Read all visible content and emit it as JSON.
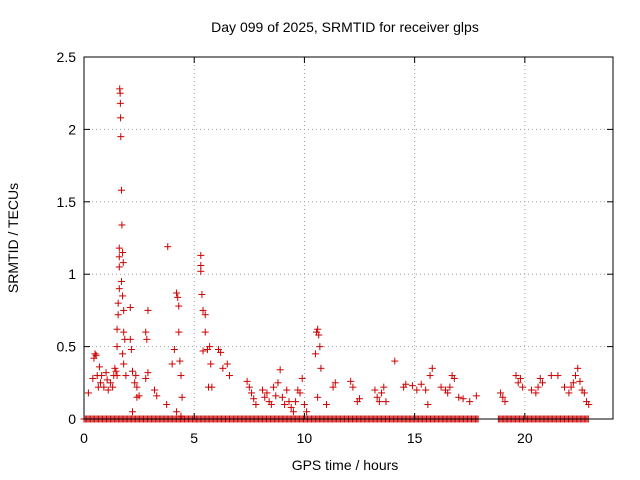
{
  "chart_data": {
    "type": "scatter",
    "title": "Day 099 of 2025, SRMTID for receiver glps",
    "xlabel": "GPS time / hours",
    "ylabel": "SRMTID / TECUs",
    "xlim": [
      0,
      24
    ],
    "ylim": [
      0,
      2.5
    ],
    "xticks": [
      0,
      5,
      10,
      15,
      20
    ],
    "yticks": [
      0,
      0.5,
      1,
      1.5,
      2,
      2.5
    ],
    "xtick_labels": [
      "0",
      "5",
      "10",
      "15",
      "20"
    ],
    "ytick_labels": [
      "0",
      "0.5",
      "1",
      "1.5",
      "2",
      "2.5"
    ],
    "grid": true,
    "marker": "+",
    "series": [
      {
        "name": "SRMTID",
        "color": "#cc0000",
        "points": [
          [
            0.2,
            0.18
          ],
          [
            0.4,
            0.28
          ],
          [
            0.45,
            0.42
          ],
          [
            0.5,
            0.45
          ],
          [
            0.55,
            0.44
          ],
          [
            0.6,
            0.3
          ],
          [
            0.65,
            0.22
          ],
          [
            0.7,
            0.36
          ],
          [
            0.75,
            0.25
          ],
          [
            0.8,
            0.3
          ],
          [
            0.9,
            0.22
          ],
          [
            1.0,
            0.32
          ],
          [
            1.05,
            0.27
          ],
          [
            1.1,
            0.2
          ],
          [
            1.2,
            0.25
          ],
          [
            1.3,
            0.22
          ],
          [
            1.35,
            0.3
          ],
          [
            1.4,
            0.35
          ],
          [
            1.45,
            0.33
          ],
          [
            1.5,
            0.3
          ],
          [
            1.5,
            0.5
          ],
          [
            1.5,
            0.62
          ],
          [
            1.55,
            0.72
          ],
          [
            1.55,
            0.8
          ],
          [
            1.6,
            0.9
          ],
          [
            1.6,
            1.05
          ],
          [
            1.6,
            1.12
          ],
          [
            1.6,
            1.18
          ],
          [
            1.62,
            2.28
          ],
          [
            1.64,
            2.25
          ],
          [
            1.65,
            2.18
          ],
          [
            1.66,
            2.08
          ],
          [
            1.67,
            1.95
          ],
          [
            1.7,
            1.58
          ],
          [
            1.72,
            1.34
          ],
          [
            1.75,
            1.15
          ],
          [
            1.78,
            1.08
          ],
          [
            1.7,
            0.95
          ],
          [
            1.75,
            0.85
          ],
          [
            1.8,
            0.75
          ],
          [
            1.8,
            0.6
          ],
          [
            1.85,
            0.55
          ],
          [
            1.75,
            0.45
          ],
          [
            1.8,
            0.38
          ],
          [
            1.9,
            0.3
          ],
          [
            2.1,
            0.77
          ],
          [
            2.1,
            0.55
          ],
          [
            2.15,
            0.48
          ],
          [
            2.2,
            0.33
          ],
          [
            2.2,
            0.05
          ],
          [
            2.3,
            0.25
          ],
          [
            2.35,
            0.3
          ],
          [
            2.4,
            0.15
          ],
          [
            2.4,
            0.22
          ],
          [
            2.5,
            0.16
          ],
          [
            2.8,
            0.28
          ],
          [
            2.8,
            0.6
          ],
          [
            2.85,
            0.55
          ],
          [
            2.9,
            0.75
          ],
          [
            2.9,
            0.32
          ],
          [
            3.2,
            0.2
          ],
          [
            3.3,
            0.16
          ],
          [
            3.8,
            1.19
          ],
          [
            3.75,
            0.1
          ],
          [
            4.0,
            0.38
          ],
          [
            4.1,
            0.48
          ],
          [
            4.2,
            0.87
          ],
          [
            4.25,
            0.84
          ],
          [
            4.3,
            0.78
          ],
          [
            4.3,
            0.6
          ],
          [
            4.35,
            0.4
          ],
          [
            4.4,
            0.3
          ],
          [
            4.45,
            0.15
          ],
          [
            4.2,
            0.05
          ],
          [
            4.4,
            0.02
          ],
          [
            5.3,
            1.13
          ],
          [
            5.3,
            1.06
          ],
          [
            5.3,
            1.02
          ],
          [
            5.35,
            0.86
          ],
          [
            5.4,
            0.75
          ],
          [
            5.5,
            0.72
          ],
          [
            5.5,
            0.6
          ],
          [
            5.6,
            0.48
          ],
          [
            5.7,
            0.5
          ],
          [
            5.75,
            0.38
          ],
          [
            5.8,
            0.22
          ],
          [
            5.65,
            0.22
          ],
          [
            5.4,
            0.47
          ],
          [
            6.1,
            0.48
          ],
          [
            6.2,
            0.46
          ],
          [
            6.3,
            0.35
          ],
          [
            6.5,
            0.38
          ],
          [
            6.6,
            0.3
          ],
          [
            7.4,
            0.26
          ],
          [
            7.5,
            0.22
          ],
          [
            7.6,
            0.18
          ],
          [
            7.7,
            0.14
          ],
          [
            7.8,
            0.1
          ],
          [
            8.1,
            0.2
          ],
          [
            8.2,
            0.15
          ],
          [
            8.3,
            0.18
          ],
          [
            8.4,
            0.12
          ],
          [
            8.5,
            0.1
          ],
          [
            8.6,
            0.22
          ],
          [
            8.7,
            0.16
          ],
          [
            8.8,
            0.25
          ],
          [
            8.9,
            0.34
          ],
          [
            9.0,
            0.15
          ],
          [
            9.1,
            0.1
          ],
          [
            9.2,
            0.2
          ],
          [
            9.3,
            0.12
          ],
          [
            9.4,
            0.08
          ],
          [
            9.5,
            0.05
          ],
          [
            9.6,
            0.12
          ],
          [
            9.7,
            0.2
          ],
          [
            9.8,
            0.18
          ],
          [
            9.9,
            0.28
          ],
          [
            10.0,
            0.1
          ],
          [
            10.1,
            0.05
          ],
          [
            10.5,
            0.45
          ],
          [
            10.55,
            0.6
          ],
          [
            10.6,
            0.62
          ],
          [
            10.65,
            0.58
          ],
          [
            10.7,
            0.5
          ],
          [
            10.75,
            0.35
          ],
          [
            10.6,
            0.15
          ],
          [
            11.0,
            0.1
          ],
          [
            11.3,
            0.22
          ],
          [
            11.4,
            0.25
          ],
          [
            12.1,
            0.26
          ],
          [
            12.2,
            0.22
          ],
          [
            12.4,
            0.12
          ],
          [
            12.5,
            0.14
          ],
          [
            13.2,
            0.2
          ],
          [
            13.3,
            0.15
          ],
          [
            13.4,
            0.12
          ],
          [
            13.5,
            0.18
          ],
          [
            13.6,
            0.22
          ],
          [
            13.7,
            0.12
          ],
          [
            14.1,
            0.4
          ],
          [
            14.5,
            0.22
          ],
          [
            14.6,
            0.24
          ],
          [
            14.9,
            0.23
          ],
          [
            15.1,
            0.2
          ],
          [
            15.3,
            0.24
          ],
          [
            15.5,
            0.2
          ],
          [
            15.6,
            0.1
          ],
          [
            15.7,
            0.3
          ],
          [
            15.8,
            0.35
          ],
          [
            16.2,
            0.22
          ],
          [
            16.4,
            0.2
          ],
          [
            16.5,
            0.18
          ],
          [
            16.6,
            0.22
          ],
          [
            16.7,
            0.3
          ],
          [
            16.8,
            0.28
          ],
          [
            17.0,
            0.15
          ],
          [
            17.2,
            0.14
          ],
          [
            17.5,
            0.12
          ],
          [
            17.8,
            0.16
          ],
          [
            18.9,
            0.18
          ],
          [
            19.0,
            0.15
          ],
          [
            19.1,
            0.12
          ],
          [
            19.6,
            0.3
          ],
          [
            19.7,
            0.25
          ],
          [
            19.8,
            0.28
          ],
          [
            19.9,
            0.22
          ],
          [
            20.3,
            0.2
          ],
          [
            20.5,
            0.18
          ],
          [
            20.6,
            0.22
          ],
          [
            20.7,
            0.28
          ],
          [
            20.8,
            0.25
          ],
          [
            21.2,
            0.3
          ],
          [
            21.5,
            0.3
          ],
          [
            21.8,
            0.22
          ],
          [
            22.0,
            0.18
          ],
          [
            22.1,
            0.22
          ],
          [
            22.2,
            0.25
          ],
          [
            22.3,
            0.3
          ],
          [
            22.4,
            0.35
          ],
          [
            22.5,
            0.26
          ],
          [
            22.6,
            0.2
          ],
          [
            22.7,
            0.18
          ],
          [
            22.8,
            0.12
          ],
          [
            22.9,
            0.1
          ]
        ],
        "baseline_spans": [
          [
            0.0,
            17.9
          ],
          [
            18.8,
            22.9
          ]
        ],
        "baseline_value": 0.0
      }
    ]
  }
}
